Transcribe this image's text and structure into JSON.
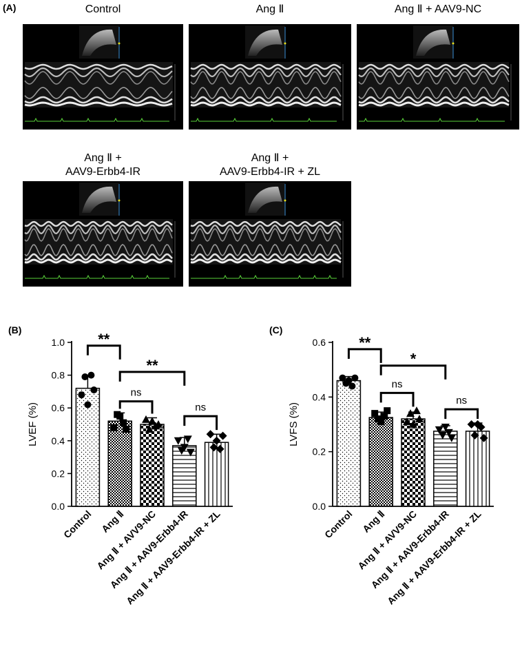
{
  "panel_a": {
    "letter": "(A)",
    "echo_images": [
      {
        "title_lines": [
          "Control"
        ],
        "stripes": 5.5
      },
      {
        "title_lines": [
          "Ang Ⅱ"
        ],
        "stripes": 8
      },
      {
        "title_lines": [
          "Ang Ⅱ + AAV9-NC"
        ],
        "stripes": 8
      },
      {
        "title_lines": [
          "Ang Ⅱ +",
          "AAV9-Erbb4-IR"
        ],
        "stripes": 10
      },
      {
        "title_lines": [
          "Ang Ⅱ +",
          "AAV9-Erbb4-IR + ZL"
        ],
        "stripes": 10
      }
    ]
  },
  "chart_data": [
    {
      "panel": "(B)",
      "type": "bar",
      "ylabel": "LVEF (%)",
      "ylim": [
        0,
        1.0
      ],
      "yticks": [
        "0.0",
        "0.2",
        "0.4",
        "0.6",
        "0.8",
        "1.0"
      ],
      "categories": [
        "Control",
        "Ang Ⅱ",
        "Ang Ⅱ + AVV9-NC",
        "Ang Ⅱ + AAV9-Erbb4-IR",
        "Ang Ⅱ + AAV9-Erbb4-IR + ZL"
      ],
      "values": [
        0.72,
        0.52,
        0.5,
        0.37,
        0.39
      ],
      "errors": [
        0.08,
        0.05,
        0.04,
        0.05,
        0.05
      ],
      "points": [
        [
          0.68,
          0.79,
          0.62,
          0.8,
          0.71
        ],
        [
          0.48,
          0.56,
          0.55,
          0.51,
          0.47
        ],
        [
          0.53,
          0.47,
          0.52,
          0.49,
          0.5
        ],
        [
          0.4,
          0.34,
          0.36,
          0.41,
          0.33
        ],
        [
          0.44,
          0.36,
          0.4,
          0.35,
          0.43
        ]
      ],
      "markers": [
        "circle",
        "square",
        "triangle",
        "triangle-down",
        "diamond"
      ],
      "patterns": [
        "dots",
        "checker-fine",
        "checker-coarse",
        "hlines",
        "vlines"
      ],
      "significance": [
        {
          "from": 0,
          "to": 1,
          "label": "**",
          "level": 0.98
        },
        {
          "from": 1,
          "to": 3,
          "label": "**",
          "level": 0.82
        },
        {
          "from": 1,
          "to": 2,
          "label": "ns",
          "level": 0.64
        },
        {
          "from": 3,
          "to": 4,
          "label": "ns",
          "level": 0.55
        }
      ]
    },
    {
      "panel": "(C)",
      "type": "bar",
      "ylabel": "LVFS (%)",
      "ylim": [
        0,
        0.6
      ],
      "yticks": [
        "0.0",
        "0.2",
        "0.4",
        "0.6"
      ],
      "categories": [
        "Control",
        "Ang Ⅱ",
        "Ang Ⅱ + AVV9-NC",
        "Ang Ⅱ + AAV9-Erbb4-IR",
        "Ang Ⅱ + AAV9-Erbb4-IR + ZL"
      ],
      "values": [
        0.46,
        0.325,
        0.32,
        0.275,
        0.275
      ],
      "errors": [
        0.015,
        0.02,
        0.025,
        0.02,
        0.03
      ],
      "points": [
        [
          0.47,
          0.45,
          0.46,
          0.44,
          0.47
        ],
        [
          0.34,
          0.32,
          0.31,
          0.33,
          0.35
        ],
        [
          0.31,
          0.34,
          0.3,
          0.35,
          0.32
        ],
        [
          0.28,
          0.26,
          0.29,
          0.27,
          0.25
        ],
        [
          0.3,
          0.26,
          0.3,
          0.29,
          0.25
        ]
      ],
      "markers": [
        "circle",
        "square",
        "triangle",
        "triangle-down",
        "diamond"
      ],
      "patterns": [
        "dots",
        "checker-fine",
        "checker-coarse",
        "hlines",
        "vlines"
      ],
      "significance": [
        {
          "from": 0,
          "to": 1,
          "label": "**",
          "level": 0.575
        },
        {
          "from": 1,
          "to": 3,
          "label": "*",
          "level": 0.515
        },
        {
          "from": 1,
          "to": 2,
          "label": "ns",
          "level": 0.415
        },
        {
          "from": 3,
          "to": 4,
          "label": "ns",
          "level": 0.355
        }
      ]
    }
  ]
}
